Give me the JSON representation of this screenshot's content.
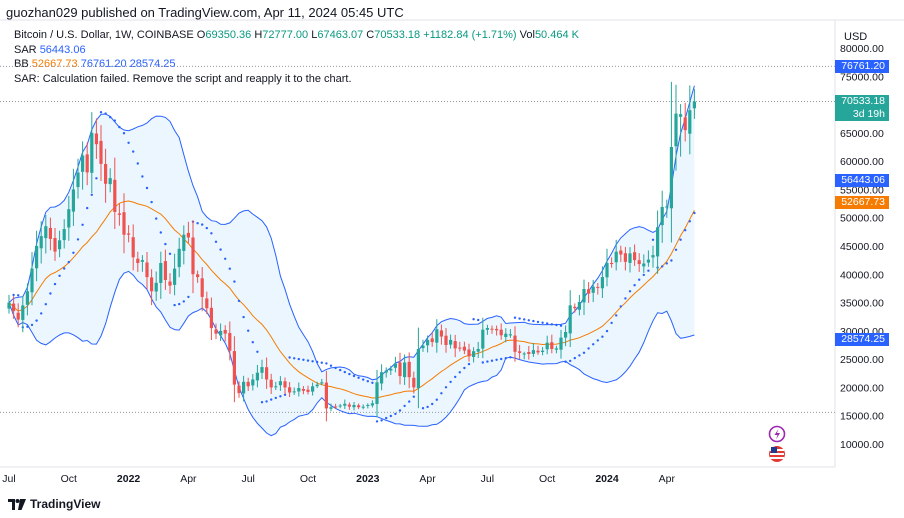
{
  "header": {
    "text": "guozhan029 published on TradingView.com, Apr 11, 2024 05:45 UTC"
  },
  "legend": {
    "symbol": "Bitcoin / U.S. Dollar, 1W, COINBASE",
    "o_label": "O",
    "o_value": "69350.36",
    "h_label": "H",
    "h_value": "72777.00",
    "l_label": "L",
    "l_value": "67463.07",
    "c_label": "C",
    "c_value": "70533.18",
    "change": "+1182.84 (+1.71%)",
    "vol_label": "Vol",
    "vol_value": "50.464 K",
    "sar_label": "SAR",
    "sar_value": "56443.06",
    "bb_label": "BB",
    "bb_basis": "52667.73",
    "bb_upper": "76761.20",
    "bb_lower": "28574.25",
    "sar_error": "SAR: Calculation failed. Remove the script and reapply it to the chart."
  },
  "price_axis": {
    "currency": "USD",
    "ticks": [
      "80000.00",
      "75000.00",
      "65000.00",
      "60000.00",
      "55000.00",
      "50000.00",
      "45000.00",
      "40000.00",
      "35000.00",
      "30000.00",
      "25000.00",
      "20000.00",
      "15000.00",
      "10000.00"
    ]
  },
  "tags": {
    "upper": "76761.20",
    "last_price": "70533.18",
    "countdown": "3d 19h",
    "sar": "56443.06",
    "basis": "52667.73",
    "lower": "28574.25"
  },
  "footer": {
    "brand": "TradingView"
  },
  "colors": {
    "up": "#26a69a",
    "down": "#ef5350",
    "band": "#2962ff",
    "basis": "#f57c00",
    "band_fill": "#e3f2fd",
    "sar": "#2962ff",
    "price_tag": "#26a69a"
  },
  "chart_data": {
    "type": "candlestick",
    "title": "Bitcoin / U.S. Dollar, 1W, COINBASE",
    "x_labels": [
      "Jul",
      "Oct",
      "2022",
      "Apr",
      "Jul",
      "Oct",
      "2023",
      "Apr",
      "Jul",
      "Oct",
      "2024",
      "Apr"
    ],
    "x_label_weeks": [
      0,
      13,
      26,
      39,
      52,
      65,
      78,
      91,
      104,
      117,
      130,
      143
    ],
    "ylim": [
      6000,
      84000
    ],
    "weeks": 150,
    "close_key": [
      [
        0,
        35000
      ],
      [
        2,
        32000
      ],
      [
        4,
        37000
      ],
      [
        6,
        45000
      ],
      [
        8,
        48500
      ],
      [
        10,
        44000
      ],
      [
        12,
        48000
      ],
      [
        14,
        55000
      ],
      [
        16,
        61000
      ],
      [
        17,
        58000
      ],
      [
        18,
        65000
      ],
      [
        19,
        63000
      ],
      [
        20,
        59500
      ],
      [
        21,
        56000
      ],
      [
        22,
        57000
      ],
      [
        23,
        51000
      ],
      [
        24,
        50500
      ],
      [
        25,
        47000
      ],
      [
        26,
        47000
      ],
      [
        27,
        43000
      ],
      [
        28,
        42000
      ],
      [
        29,
        42500
      ],
      [
        30,
        39500
      ],
      [
        31,
        37000
      ],
      [
        32,
        38500
      ],
      [
        33,
        42000
      ],
      [
        34,
        39000
      ],
      [
        35,
        38000
      ],
      [
        36,
        41000
      ],
      [
        37,
        44500
      ],
      [
        38,
        47000
      ],
      [
        39,
        46500
      ],
      [
        40,
        40000
      ],
      [
        41,
        39500
      ],
      [
        42,
        36000
      ],
      [
        43,
        34000
      ],
      [
        44,
        30500
      ],
      [
        45,
        29500
      ],
      [
        46,
        30000
      ],
      [
        47,
        29500
      ],
      [
        48,
        26500
      ],
      [
        49,
        20500
      ],
      [
        50,
        19000
      ],
      [
        51,
        21000
      ],
      [
        52,
        20200
      ],
      [
        53,
        21400
      ],
      [
        54,
        22600
      ],
      [
        55,
        23600
      ],
      [
        56,
        21400
      ],
      [
        57,
        20000
      ],
      [
        58,
        20200
      ],
      [
        59,
        21100
      ],
      [
        60,
        20000
      ],
      [
        61,
        19100
      ],
      [
        62,
        19300
      ],
      [
        63,
        19900
      ],
      [
        64,
        19400
      ],
      [
        65,
        19200
      ],
      [
        66,
        20200
      ],
      [
        67,
        20500
      ],
      [
        68,
        20900
      ],
      [
        69,
        16300
      ],
      [
        70,
        16500
      ],
      [
        71,
        16600
      ],
      [
        72,
        16800
      ],
      [
        73,
        17100
      ],
      [
        74,
        16600
      ],
      [
        75,
        16900
      ],
      [
        76,
        16500
      ],
      [
        77,
        16600
      ],
      [
        78,
        16900
      ],
      [
        79,
        17200
      ],
      [
        80,
        20900
      ],
      [
        81,
        22700
      ],
      [
        82,
        23000
      ],
      [
        83,
        23300
      ],
      [
        84,
        24200
      ],
      [
        85,
        22000
      ],
      [
        86,
        24400
      ],
      [
        87,
        21800
      ],
      [
        88,
        20000
      ],
      [
        89,
        26800
      ],
      [
        90,
        27400
      ],
      [
        91,
        28400
      ],
      [
        92,
        28000
      ],
      [
        93,
        30300
      ],
      [
        94,
        29000
      ],
      [
        95,
        27500
      ],
      [
        96,
        28400
      ],
      [
        97,
        26900
      ],
      [
        98,
        27000
      ],
      [
        99,
        26500
      ],
      [
        100,
        25500
      ],
      [
        101,
        26400
      ],
      [
        102,
        26800
      ],
      [
        103,
        30200
      ],
      [
        104,
        30500
      ],
      [
        105,
        30300
      ],
      [
        106,
        30100
      ],
      [
        107,
        29200
      ],
      [
        108,
        29500
      ],
      [
        109,
        29400
      ],
      [
        110,
        26300
      ],
      [
        111,
        26100
      ],
      [
        112,
        26000
      ],
      [
        113,
        25900
      ],
      [
        114,
        26600
      ],
      [
        115,
        26200
      ],
      [
        116,
        26500
      ],
      [
        117,
        27900
      ],
      [
        118,
        26800
      ],
      [
        119,
        26900
      ],
      [
        120,
        28800
      ],
      [
        121,
        29800
      ],
      [
        122,
        34500
      ],
      [
        123,
        34000
      ],
      [
        124,
        35100
      ],
      [
        125,
        37400
      ],
      [
        126,
        36600
      ],
      [
        127,
        37800
      ],
      [
        128,
        37700
      ],
      [
        129,
        39500
      ],
      [
        130,
        42000
      ],
      [
        131,
        41900
      ],
      [
        132,
        44000
      ],
      [
        133,
        43500
      ],
      [
        134,
        42200
      ],
      [
        135,
        43700
      ],
      [
        136,
        42500
      ],
      [
        137,
        41800
      ],
      [
        138,
        41900
      ],
      [
        139,
        42600
      ],
      [
        140,
        43400
      ],
      [
        141,
        48300
      ],
      [
        142,
        51900
      ],
      [
        143,
        52000
      ],
      [
        144,
        62500
      ],
      [
        145,
        68400
      ],
      [
        146,
        68300
      ],
      [
        147,
        65500
      ],
      [
        148,
        69000
      ],
      [
        149,
        70533
      ]
    ],
    "sar_points": "weekly parabolic SAR dots rendered below price in uptrends and above price in downtrends",
    "bands": {
      "basis_period": 20,
      "std_dev": 2
    },
    "last": {
      "open": 69350.36,
      "high": 72777.0,
      "low": 67463.07,
      "close": 70533.18
    },
    "volume": "50.464 K"
  }
}
